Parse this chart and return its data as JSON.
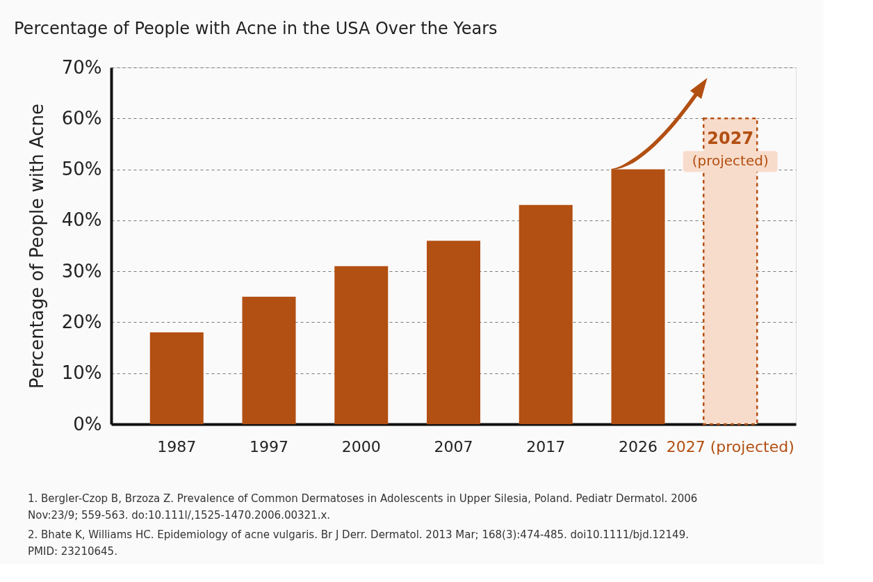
{
  "chart_data": {
    "type": "bar",
    "title": "Percentage of People with Acne in the USA Over the Years",
    "ylabel": "Percentage of People with Acne",
    "categories": [
      "1987",
      "1997",
      "2000",
      "2007",
      "2017",
      "2026",
      "2027 (projected)"
    ],
    "series": [
      {
        "color": "#b24f12",
        "values": [
          18,
          25,
          31,
          36,
          43,
          50,
          null
        ]
      },
      {
        "color": "#f8dccb",
        "values": [
          null,
          null,
          null,
          null,
          null,
          null,
          60
        ],
        "line_style": "dashed"
      }
    ],
    "ylim": [
      0,
      70
    ],
    "yticks": [
      {
        "value": 0,
        "label": "0%"
      },
      {
        "value": 10,
        "label": "10%"
      },
      {
        "value": 20,
        "label": "20%"
      },
      {
        "value": 30,
        "label": "30%"
      },
      {
        "value": 40,
        "label": "40%"
      },
      {
        "value": 50,
        "label": "50%"
      },
      {
        "value": 60,
        "label": "60%"
      },
      {
        "value": 70,
        "label": "70%"
      }
    ],
    "grid": "y",
    "annotations": [
      "2027\n(projected)",
      "1. Bergler-Czop B, Brzoza Z. Prevalence of Common Dermatoses in Adolescents in Upper Silesia, Poland. Pediatr Dermatol. 2006\n    Nov:23/9; 559-563. do:10.111l/,1525-1470.2006.00321.x.",
      "2. Bhate K, Williams HC. Epidemiology of acne vulgaris. Br J Derr. Dermatol. 2013 Mar; 168(3):474-485.   doi10.1111/bjd.12149.\n    PMID: 23210645."
    ]
  }
}
